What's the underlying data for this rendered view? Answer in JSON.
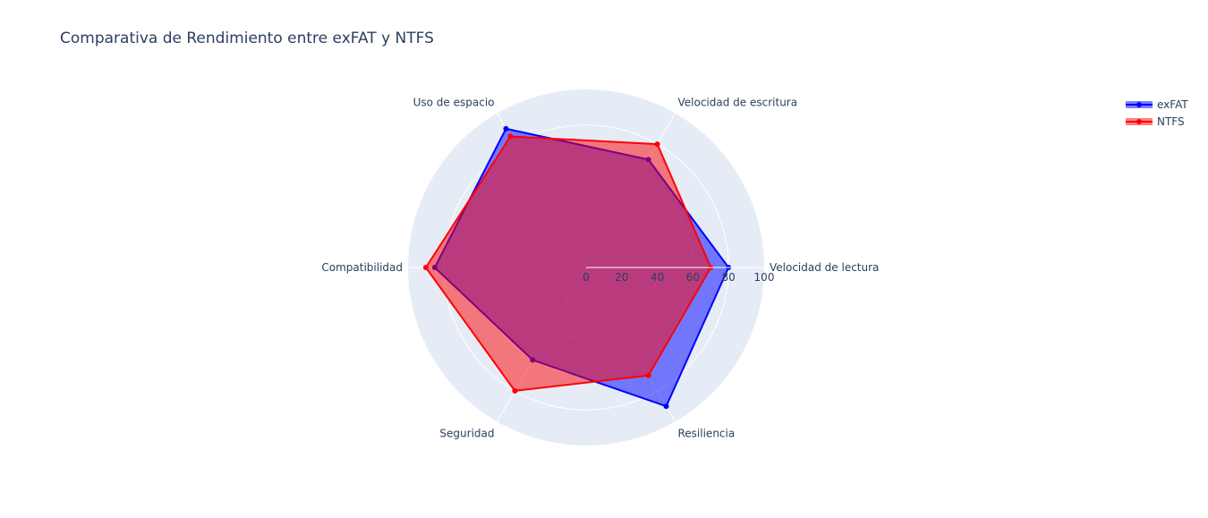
{
  "chart_data": {
    "type": "radar",
    "title": "Comparativa de Rendimiento entre exFAT y NTFS",
    "categories": [
      "Velocidad de lectura",
      "Velocidad de escritura",
      "Uso de espacio",
      "Compatibilidad",
      "Seguridad",
      "Resiliencia"
    ],
    "series": [
      {
        "name": "exFAT",
        "values": [
          80,
          70,
          90,
          85,
          60,
          90
        ],
        "color": "#0000ff",
        "fill": "rgba(0,0,255,0.5)"
      },
      {
        "name": "NTFS",
        "values": [
          70,
          80,
          85,
          90,
          80,
          70
        ],
        "color": "#ff0000",
        "fill": "rgba(255,0,0,0.5)"
      }
    ],
    "radial_range": [
      0,
      100
    ],
    "radial_ticks": [
      "0",
      "20",
      "40",
      "60",
      "80",
      "100"
    ],
    "grid": true,
    "legend_position": "top-right",
    "polar_background": "#e5ecf6"
  }
}
